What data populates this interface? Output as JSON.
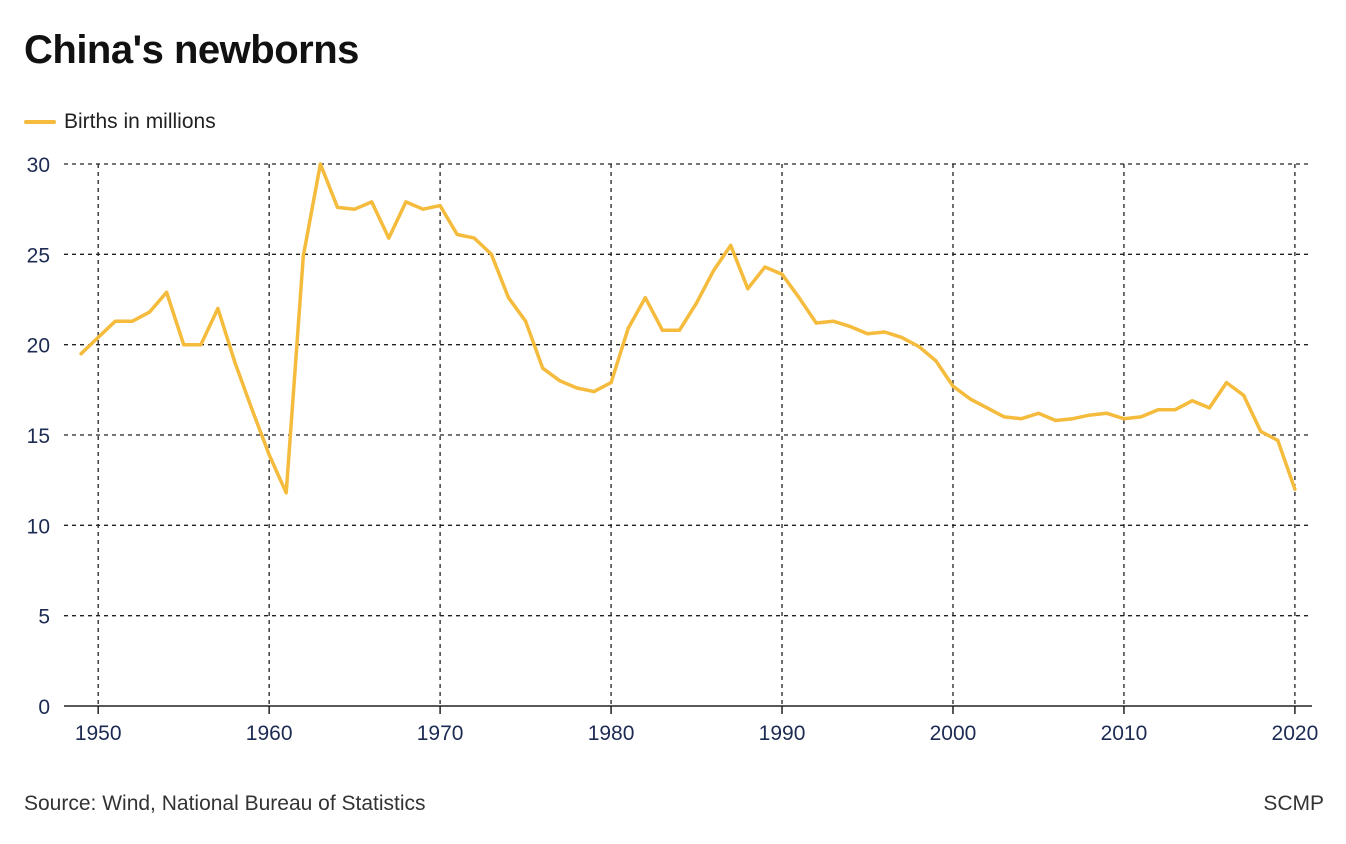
{
  "header": {
    "title": "China's newborns"
  },
  "footer": {
    "source": "Source: Wind, National Bureau of Statistics",
    "brand": "SCMP"
  },
  "colors": {
    "line": "#f5bb3c",
    "grid": "#222222",
    "tick_text": "#1d2b53"
  },
  "chart_data": {
    "type": "line",
    "title": "China's newborns",
    "xlabel": "",
    "ylabel": "",
    "xlim": [
      1948,
      2021
    ],
    "ylim": [
      0,
      30
    ],
    "x_ticks": [
      1950,
      1960,
      1970,
      1980,
      1990,
      2000,
      2010,
      2020
    ],
    "y_ticks": [
      0,
      5,
      10,
      15,
      20,
      25,
      30
    ],
    "grid": true,
    "grid_style": "dashed",
    "legend_position": "top-left",
    "series": [
      {
        "name": "Births in millions",
        "color": "#f5bb3c",
        "x": [
          1949,
          1950,
          1951,
          1952,
          1953,
          1954,
          1955,
          1956,
          1957,
          1958,
          1959,
          1960,
          1961,
          1962,
          1963,
          1964,
          1965,
          1966,
          1967,
          1968,
          1969,
          1970,
          1971,
          1972,
          1973,
          1974,
          1975,
          1976,
          1977,
          1978,
          1979,
          1980,
          1981,
          1982,
          1983,
          1984,
          1985,
          1986,
          1987,
          1988,
          1989,
          1990,
          1991,
          1992,
          1993,
          1994,
          1995,
          1996,
          1997,
          1998,
          1999,
          2000,
          2001,
          2002,
          2003,
          2004,
          2005,
          2006,
          2007,
          2008,
          2009,
          2010,
          2011,
          2012,
          2013,
          2014,
          2015,
          2016,
          2017,
          2018,
          2019,
          2020
        ],
        "values": [
          19.5,
          20.4,
          21.3,
          21.3,
          21.8,
          22.9,
          20.0,
          20.0,
          22.0,
          19.0,
          16.4,
          13.9,
          11.8,
          24.9,
          30.0,
          27.6,
          27.5,
          27.9,
          25.9,
          27.9,
          27.5,
          27.7,
          26.1,
          25.9,
          25.0,
          22.6,
          21.3,
          18.7,
          18.0,
          17.6,
          17.4,
          17.9,
          20.9,
          22.6,
          20.8,
          20.8,
          22.3,
          24.1,
          25.5,
          23.1,
          24.3,
          23.9,
          22.6,
          21.2,
          21.3,
          21.0,
          20.6,
          20.7,
          20.4,
          19.9,
          19.1,
          17.7,
          17.0,
          16.5,
          16.0,
          15.9,
          16.2,
          15.8,
          15.9,
          16.1,
          16.2,
          15.9,
          16.0,
          16.4,
          16.4,
          16.9,
          16.5,
          17.9,
          17.2,
          15.2,
          14.7,
          12.0
        ]
      }
    ]
  }
}
